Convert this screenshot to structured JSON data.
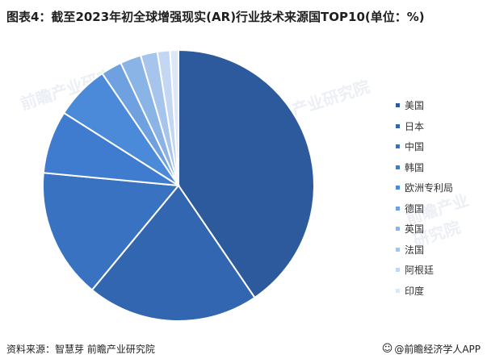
{
  "title": "图表4：截至2023年初全球增强现实(AR)行业技术来源国TOP10(单位：%)",
  "source": "资料来源：智慧芽 前瞻产业研究院",
  "brand": "@前瞻经济学人APP",
  "watermark": "前瞻产业研究院",
  "chart_data": {
    "type": "pie",
    "title": "图表4：截至2023年初全球增强现实(AR)行业技术来源国TOP10(单位：%)",
    "categories": [
      "美国",
      "日本",
      "中国",
      "韩国",
      "欧洲专利局",
      "德国",
      "英国",
      "法国",
      "阿根廷",
      "印度"
    ],
    "values": [
      40.5,
      20.5,
      15.5,
      7.5,
      6.5,
      2.5,
      2.5,
      2.0,
      1.5,
      1.0
    ],
    "colors": [
      "#2d5a9c",
      "#3366b0",
      "#3a72c2",
      "#3f7ccf",
      "#4a8ad8",
      "#6fa0e0",
      "#8ab3e6",
      "#a6c4ec",
      "#c3d7f2",
      "#dde8f7"
    ],
    "legend_position": "right",
    "start_angle_deg": 0,
    "direction": "clockwise"
  }
}
